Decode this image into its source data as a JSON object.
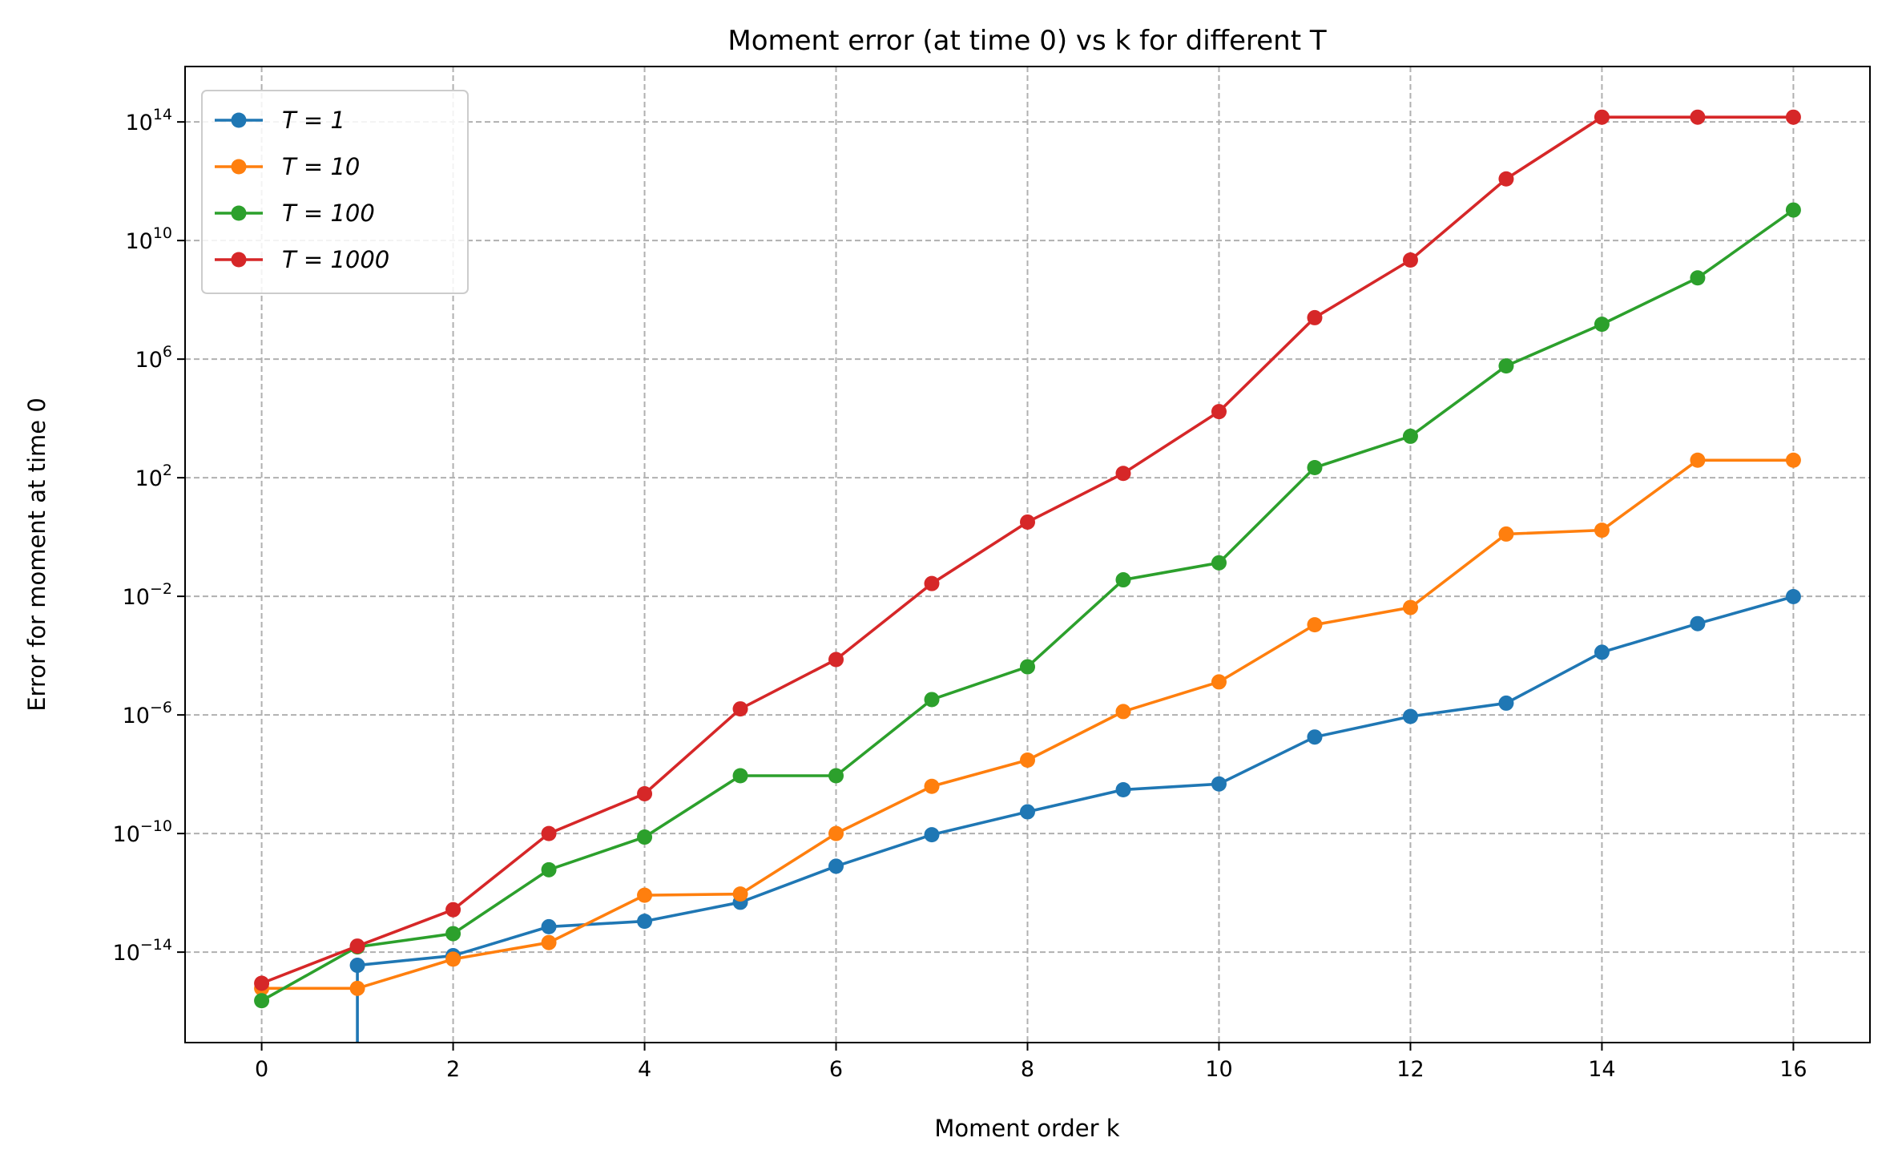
{
  "chart_data": {
    "type": "line",
    "title": "Moment error (at time 0) vs k for different T",
    "xlabel": "Moment order k",
    "ylabel": "Error for moment at time 0",
    "x": [
      0,
      1,
      2,
      3,
      4,
      5,
      6,
      7,
      8,
      9,
      10,
      11,
      12,
      13,
      14,
      15,
      16
    ],
    "xlim": [
      -0.8,
      16.8
    ],
    "ylim": [
      8.9e-18,
      7400000000000000.0
    ],
    "yscale": "log",
    "grid": true,
    "legend_position": "top-left",
    "xticks": [
      0,
      2,
      4,
      6,
      8,
      10,
      12,
      14,
      16
    ],
    "yticks": [
      {
        "value": 1e-14,
        "base": "10",
        "exp": "−14"
      },
      {
        "value": 1e-10,
        "base": "10",
        "exp": "−10"
      },
      {
        "value": 1e-06,
        "base": "10",
        "exp": "−6"
      },
      {
        "value": 0.01,
        "base": "10",
        "exp": "−2"
      },
      {
        "value": 100.0,
        "base": "10",
        "exp": "2"
      },
      {
        "value": 1000000.0,
        "base": "10",
        "exp": "6"
      },
      {
        "value": 10000000000.0,
        "base": "10",
        "exp": "10"
      },
      {
        "value": 100000000000000.0,
        "base": "10",
        "exp": "14"
      }
    ],
    "series": [
      {
        "name": "T = 1",
        "color": "#1f77b4",
        "values": [
          0,
          3.6e-15,
          7.6e-15,
          7.2e-14,
          1.1e-13,
          4.8e-13,
          7.9e-12,
          9.1e-11,
          5.4e-10,
          3e-09,
          4.7e-09,
          1.8e-07,
          8.9e-07,
          2.5e-06,
          0.00013,
          0.0012,
          0.0098
        ]
      },
      {
        "name": "T = 10",
        "color": "#ff7f0e",
        "values": [
          6e-16,
          6e-16,
          5.8e-15,
          2.1e-14,
          8.3e-13,
          9.1e-13,
          1e-10,
          3.9e-09,
          3e-08,
          1.3e-06,
          1.3e-05,
          0.0011,
          0.0042,
          1.26,
          1.7,
          390,
          390
        ]
      },
      {
        "name": "T = 100",
        "color": "#2ca02c",
        "values": [
          2.3e-16,
          1.5e-14,
          4.2e-14,
          6e-12,
          7.6e-11,
          8.9e-09,
          8.9e-09,
          3.3e-06,
          4.2e-05,
          0.036,
          0.135,
          220,
          2500,
          590000.0,
          15000000.0,
          550000000.0,
          107000000000.0
        ]
      },
      {
        "name": "T = 1000",
        "color": "#d62728",
        "values": [
          8.9e-16,
          1.6e-14,
          2.7e-13,
          1e-10,
          2.2e-09,
          1.6e-06,
          7.4e-05,
          0.027,
          3.2,
          140,
          17000.0,
          25000000.0,
          2200000000.0,
          1200000000000.0,
          145000000000000.0,
          145000000000000.0,
          145000000000000.0
        ]
      }
    ]
  }
}
